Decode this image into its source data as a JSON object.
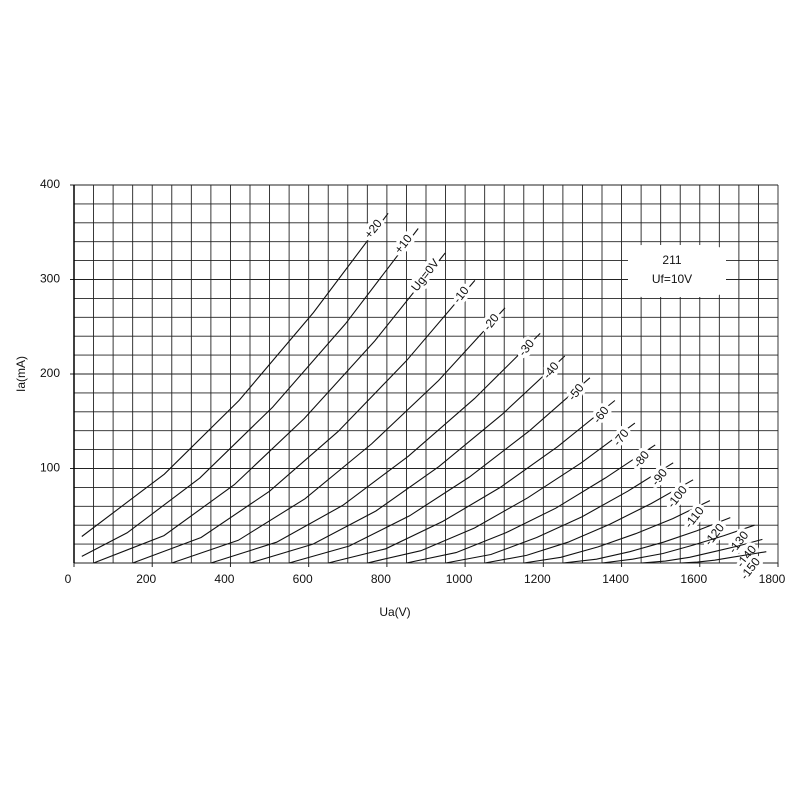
{
  "chart_data": {
    "type": "line",
    "x_label": "Ua(V)",
    "y_label": "Ia(mA)",
    "annotations": [
      "211",
      "Uf=10V"
    ],
    "xlim": [
      0,
      1800
    ],
    "ylim": [
      0,
      400
    ],
    "xticks": [
      0,
      200,
      400,
      600,
      800,
      1000,
      1200,
      1400,
      1600,
      1800
    ],
    "yticks": [
      100,
      200,
      300,
      400
    ],
    "xminorticks": [
      0,
      50,
      100,
      150,
      200,
      250,
      300,
      350,
      400,
      450,
      500,
      550,
      600,
      650,
      700,
      750,
      800,
      850,
      900,
      950,
      1000,
      1050,
      1100,
      1150,
      1200,
      1250,
      1300,
      1350,
      1400,
      1450,
      1500,
      1550,
      1600,
      1650,
      1700,
      1750,
      1800
    ],
    "yminorticks": [
      0,
      20,
      40,
      60,
      80,
      100,
      120,
      140,
      160,
      180,
      200,
      220,
      240,
      260,
      280,
      300,
      320,
      340,
      360,
      380,
      400
    ],
    "grid": true,
    "grid_color": "#222",
    "line_color": "#111",
    "series": [
      {
        "name": "+20",
        "x": [
          20,
          231,
          422,
          612,
          803
        ],
        "values": [
          28,
          94,
          172,
          265,
          370
        ]
      },
      {
        "name": "+10",
        "x": [
          20,
          136,
          322,
          508,
          694,
          880
        ],
        "values": [
          7,
          32,
          90,
          165,
          253,
          354
        ]
      },
      {
        "name": "Ug=0V",
        "x": [
          50,
          230,
          410,
          589,
          769,
          949
        ],
        "values": [
          0,
          29,
          83,
          153,
          235,
          328
        ]
      },
      {
        "name": "-10",
        "x": [
          150,
          325,
          500,
          675,
          850,
          1025
        ],
        "values": [
          0,
          27,
          76,
          139,
          214,
          299
        ]
      },
      {
        "name": "-20",
        "x": [
          250,
          420,
          591,
          761,
          932,
          1102
        ],
        "values": [
          0,
          24,
          68,
          126,
          193,
          270
        ]
      },
      {
        "name": "-30",
        "x": [
          350,
          518,
          687,
          855,
          1024,
          1192
        ],
        "values": [
          0,
          22,
          61,
          113,
          174,
          243
        ]
      },
      {
        "name": "-40",
        "x": [
          450,
          611,
          772,
          933,
          1094,
          1255
        ],
        "values": [
          0,
          20,
          55,
          102,
          157,
          219
        ]
      },
      {
        "name": "-50",
        "x": [
          550,
          704,
          858,
          1011,
          1165,
          1319
        ],
        "values": [
          0,
          18,
          50,
          91,
          140,
          196
        ]
      },
      {
        "name": "-60",
        "x": [
          650,
          797,
          943,
          1090,
          1236,
          1383
        ],
        "values": [
          0,
          15,
          44,
          80,
          123,
          172
        ]
      },
      {
        "name": "-70",
        "x": [
          750,
          887,
          1024,
          1160,
          1297,
          1434
        ],
        "values": [
          0,
          13,
          37,
          69,
          106,
          148
        ]
      },
      {
        "name": "-80",
        "x": [
          850,
          977,
          1104,
          1232,
          1359,
          1486
        ],
        "values": [
          0,
          11,
          32,
          58,
          90,
          125
        ]
      },
      {
        "name": "-90",
        "x": [
          950,
          1066,
          1183,
          1299,
          1416,
          1532
        ],
        "values": [
          0,
          9,
          27,
          49,
          76,
          106
        ]
      },
      {
        "name": "-100",
        "x": [
          1050,
          1157,
          1263,
          1370,
          1476,
          1583
        ],
        "values": [
          0,
          8,
          22,
          41,
          63,
          88
        ]
      },
      {
        "name": "-110",
        "x": [
          1150,
          1245,
          1340,
          1436,
          1531,
          1626
        ],
        "values": [
          0,
          6,
          17,
          31,
          47,
          66
        ]
      },
      {
        "name": "-120",
        "x": [
          1250,
          1336,
          1421,
          1507,
          1592,
          1678
        ],
        "values": [
          0,
          4,
          12,
          22,
          34,
          48
        ]
      },
      {
        "name": "-130",
        "x": [
          1350,
          1428,
          1506,
          1584,
          1662,
          1740
        ],
        "values": [
          0,
          4,
          10,
          19,
          29,
          40
        ]
      },
      {
        "name": "-140",
        "x": [
          1450,
          1512,
          1574,
          1636,
          1698,
          1760
        ],
        "values": [
          0,
          2,
          6,
          12,
          18,
          25
        ]
      },
      {
        "name": "-150",
        "x": [
          1550,
          1594,
          1638,
          1682,
          1726,
          1770
        ],
        "values": [
          0,
          1,
          3,
          6,
          9,
          12
        ]
      }
    ]
  }
}
